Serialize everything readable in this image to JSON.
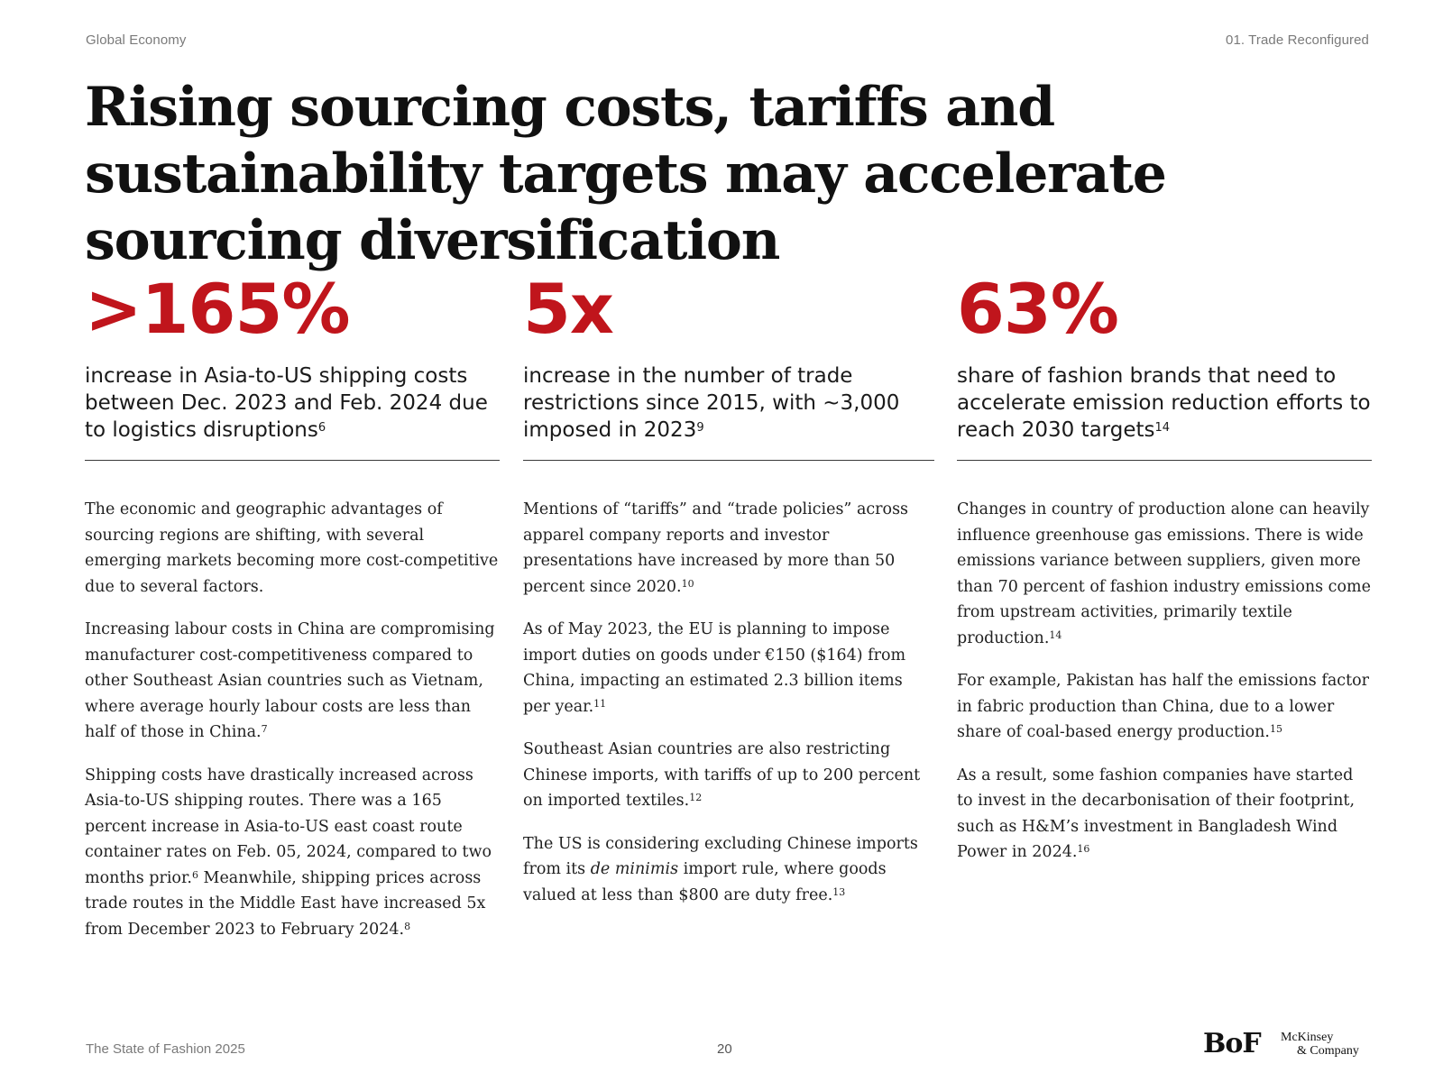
{
  "header": {
    "section_left": "Global Economy",
    "section_right": "01. Trade Reconfigured"
  },
  "title": "Rising sourcing costs, tariffs and sustainability targets may accelerate sourcing diversification",
  "columns": [
    {
      "stat": ">165%",
      "stat_desc": "increase in Asia-to-US shipping costs between Dec. 2023 and Feb. 2024 due to logistics disruptions",
      "stat_ref": "6",
      "paragraphs": [
        {
          "text": "The economic and geographic advantages of sourcing regions are shifting, with several emerging markets becoming more cost-competitive due to several factors.",
          "ref": ""
        },
        {
          "text": "Increasing labour costs in China are compromising manufacturer cost-competitiveness compared to other Southeast Asian countries such as Vietnam, where average hourly labour costs are less than half of those in China.",
          "ref": "7"
        },
        {
          "text_a": "Shipping costs have drastically increased across Asia-to-US shipping routes. There was a 165 percent increase in Asia-to-US east coast route container rates on Feb. 05, 2024, compared to two months prior.",
          "ref_a": "6",
          "text_b": " Meanwhile, shipping prices across trade routes in the Middle East have increased 5x from December 2023 to February 2024.",
          "ref": "8"
        }
      ]
    },
    {
      "stat": "5x",
      "stat_desc": "increase in the number of trade restrictions since 2015, with ~3,000 imposed in 2023",
      "stat_ref": "9",
      "paragraphs": [
        {
          "text": "Mentions of “tariffs” and “trade policies” across apparel company reports and investor presentations have increased by more than 50 percent since 2020.",
          "ref": "10"
        },
        {
          "text": "As of May 2023, the EU is planning to impose import duties on goods under €150 ($164) from China, impacting an estimated 2.3 billion items per year.",
          "ref": "11"
        },
        {
          "text": "Southeast Asian countries are also restricting Chinese imports, with tariffs of up to 200 percent on imported textiles.",
          "ref": "12"
        },
        {
          "text_a": "The US is considering excluding Chinese imports from its ",
          "italic": "de minimis",
          "text_b": " import rule, where goods valued at less than $800 are duty free.",
          "ref": "13"
        }
      ]
    },
    {
      "stat": "63%",
      "stat_desc": "share of fashion brands that need to accelerate emission reduction efforts to reach 2030 targets",
      "stat_ref": "14",
      "paragraphs": [
        {
          "text": "Changes in country of production alone can heavily influence greenhouse gas emissions. There is wide emissions variance between suppliers, given more than 70 percent of fashion industry emissions come from upstream activities, primarily textile production.",
          "ref": "14"
        },
        {
          "text": "For example, Pakistan has half the emissions factor in fabric production than China, due to a lower share of coal-based energy production.",
          "ref": "15"
        },
        {
          "text": "As a result, some fashion companies have started to invest in the decarbonisation of their footprint, such as H&M’s investment in Bangladesh Wind Power in 2024.",
          "ref": "16"
        }
      ]
    }
  ],
  "footer": {
    "publication": "The State of Fashion 2025",
    "page_number": "20",
    "logo_bof": "BoF",
    "logo_mckinsey_line1": "McKinsey",
    "logo_mckinsey_line2": "& Company"
  },
  "colors": {
    "accent_red": "#c0151c",
    "text": "#1a1a1a",
    "muted": "#7a7a7a"
  }
}
